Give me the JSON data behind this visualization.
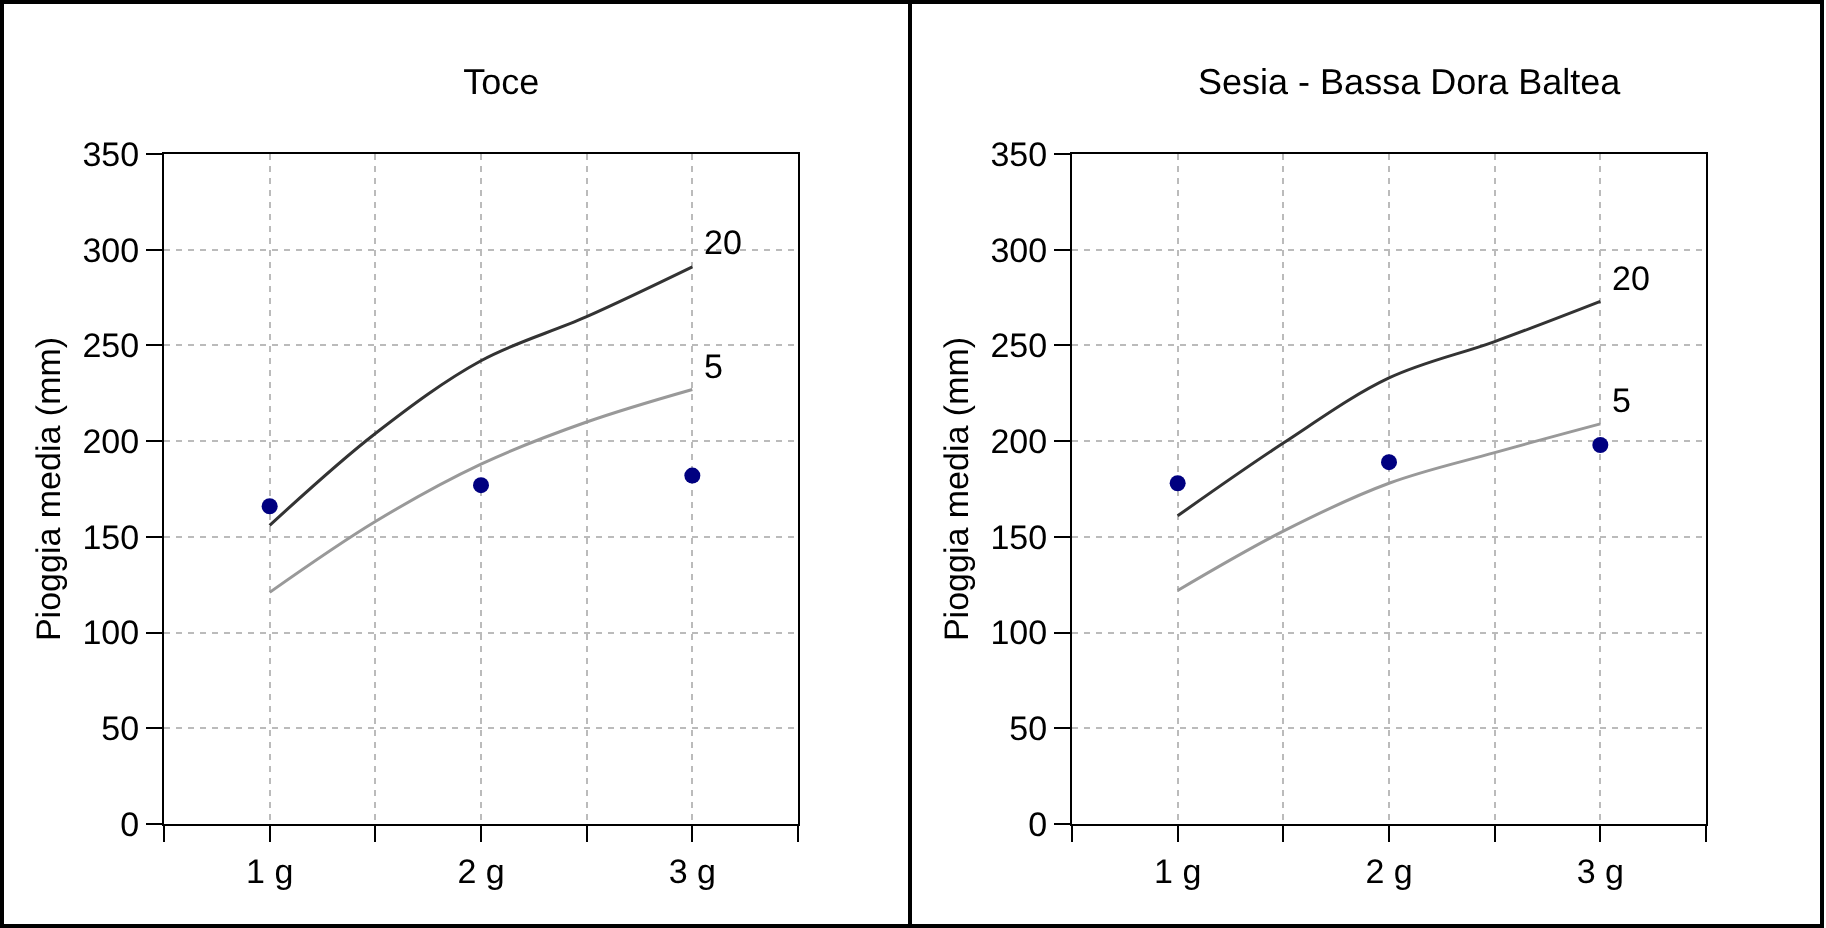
{
  "chart_data": [
    {
      "type": "line",
      "title": "Toce",
      "ylabel": "Pioggia media (mm)",
      "xlim": [
        0.5,
        3.5
      ],
      "xticks": [
        {
          "value": 0.5,
          "label": null
        },
        {
          "value": 1,
          "label": "1 g"
        },
        {
          "value": 1.5,
          "label": null
        },
        {
          "value": 2,
          "label": "2 g"
        },
        {
          "value": 2.5,
          "label": null
        },
        {
          "value": 3,
          "label": "3 g"
        },
        {
          "value": 3.5,
          "label": null
        }
      ],
      "ylim": [
        0,
        350
      ],
      "yticks": [
        0,
        50,
        100,
        150,
        200,
        250,
        300,
        350
      ],
      "grid": true,
      "legend": false,
      "series": [
        {
          "name": "20",
          "color": "#333333",
          "marker": "none",
          "x": [
            1,
            1.5,
            2,
            2.5,
            3
          ],
          "values": [
            156,
            204,
            242,
            265,
            291
          ]
        },
        {
          "name": "5",
          "color": "#999999",
          "marker": "none",
          "x": [
            1,
            1.5,
            2,
            2.5,
            3
          ],
          "values": [
            121,
            158,
            188,
            210,
            227
          ]
        },
        {
          "type": "scatter",
          "color": "#000080",
          "marker": "circle",
          "x": [
            1,
            2,
            3
          ],
          "values": [
            166,
            177,
            182
          ]
        }
      ]
    },
    {
      "type": "line",
      "title": "Sesia - Bassa Dora Baltea",
      "ylabel": "Pioggia media (mm)",
      "xlim": [
        0.5,
        3.5
      ],
      "xticks": [
        {
          "value": 0.5,
          "label": null
        },
        {
          "value": 1,
          "label": "1 g"
        },
        {
          "value": 1.5,
          "label": null
        },
        {
          "value": 2,
          "label": "2 g"
        },
        {
          "value": 2.5,
          "label": null
        },
        {
          "value": 3,
          "label": "3 g"
        },
        {
          "value": 3.5,
          "label": null
        }
      ],
      "ylim": [
        0,
        350
      ],
      "yticks": [
        0,
        50,
        100,
        150,
        200,
        250,
        300,
        350
      ],
      "grid": true,
      "legend": false,
      "series": [
        {
          "name": "20",
          "color": "#333333",
          "marker": "none",
          "x": [
            1,
            1.5,
            2,
            2.5,
            3
          ],
          "values": [
            161,
            199,
            233,
            252,
            273
          ]
        },
        {
          "name": "5",
          "color": "#999999",
          "marker": "none",
          "x": [
            1,
            1.5,
            2,
            2.5,
            3
          ],
          "values": [
            122,
            153,
            178,
            194,
            209
          ]
        },
        {
          "type": "scatter",
          "color": "#000080",
          "marker": "circle",
          "x": [
            1,
            2,
            3
          ],
          "values": [
            178,
            189,
            198
          ]
        }
      ]
    }
  ]
}
